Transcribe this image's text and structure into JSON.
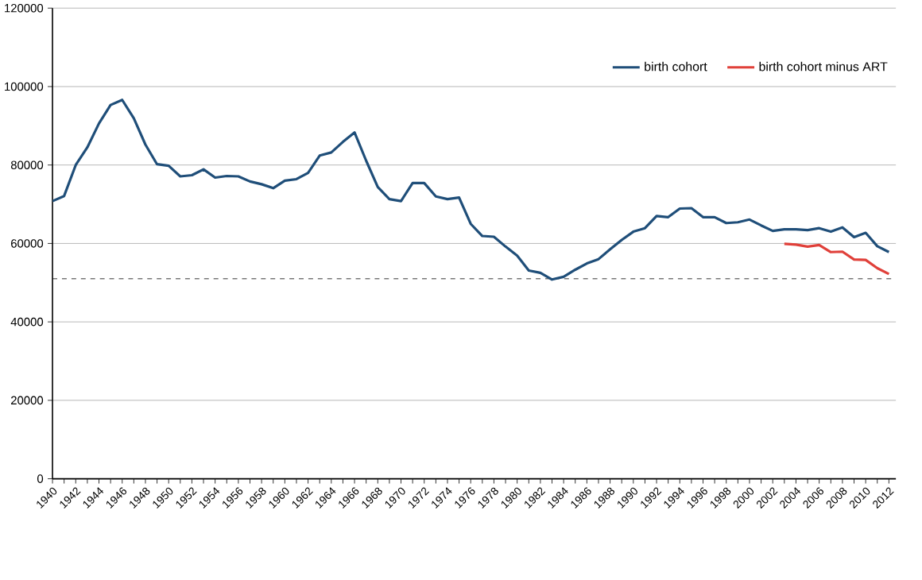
{
  "chart_data": {
    "type": "line",
    "categories": [
      "1940",
      null,
      "1942",
      null,
      "1944",
      null,
      "1946",
      null,
      "1948",
      null,
      "1950",
      null,
      "1952",
      null,
      "1954",
      null,
      "1956",
      null,
      "1958",
      null,
      "1960",
      null,
      "1962",
      null,
      "1964",
      null,
      "1966",
      null,
      "1968",
      null,
      "1970",
      null,
      "1972",
      null,
      "1974",
      null,
      "1976",
      null,
      "1978",
      null,
      "1980",
      null,
      "1982",
      null,
      "1984",
      null,
      "1986",
      null,
      "1988",
      null,
      "1990",
      null,
      "1992",
      null,
      "1994",
      null,
      "1996",
      null,
      "1998",
      null,
      "2000",
      null,
      "2002",
      null,
      "2004",
      null,
      "2006",
      null,
      "2008",
      null,
      "2010",
      null,
      "2012"
    ],
    "series": [
      {
        "name": "birth cohort",
        "color": "#1f4e79",
        "values": [
          70800,
          72100,
          80000,
          84500,
          90600,
          95300,
          96600,
          91900,
          85200,
          80200,
          79800,
          77100,
          77400,
          78900,
          76800,
          77200,
          77100,
          75800,
          75100,
          74100,
          76000,
          76400,
          78000,
          82400,
          83200,
          85900,
          88300,
          81100,
          74400,
          71300,
          70800,
          75400,
          75400,
          72000,
          71300,
          71700,
          65000,
          61900,
          61700,
          59200,
          56900,
          53100,
          52500,
          50800,
          51500,
          53300,
          54900,
          56000,
          58500,
          60900,
          63000,
          63900,
          67000,
          66700,
          68900,
          69000,
          66700,
          66700,
          65200,
          65400,
          66100,
          64600,
          63200,
          63600,
          63600,
          63400,
          63900,
          63000,
          64100,
          61600,
          62700,
          59300,
          57800
        ]
      },
      {
        "name": "birth cohort minus ART",
        "color": "#e0403a",
        "values": [
          null,
          null,
          null,
          null,
          null,
          null,
          null,
          null,
          null,
          null,
          null,
          null,
          null,
          null,
          null,
          null,
          null,
          null,
          null,
          null,
          null,
          null,
          null,
          null,
          null,
          null,
          null,
          null,
          null,
          null,
          null,
          null,
          null,
          null,
          null,
          null,
          null,
          null,
          null,
          null,
          null,
          null,
          null,
          null,
          null,
          null,
          null,
          null,
          null,
          null,
          null,
          null,
          null,
          null,
          null,
          null,
          null,
          null,
          null,
          null,
          null,
          null,
          null,
          59900,
          59700,
          59200,
          59600,
          57800,
          57900,
          55900,
          55800,
          53700,
          52200
        ]
      }
    ],
    "ylim": [
      0,
      120000
    ],
    "yticks": [
      0,
      20000,
      40000,
      60000,
      80000,
      100000,
      120000
    ],
    "grid": "y",
    "legend": "top right",
    "marker": "none",
    "line_style": "solid",
    "ref_lines": [
      {
        "axis": "y",
        "value": 51000,
        "color": "#000000",
        "line_style": "dashed"
      }
    ]
  }
}
